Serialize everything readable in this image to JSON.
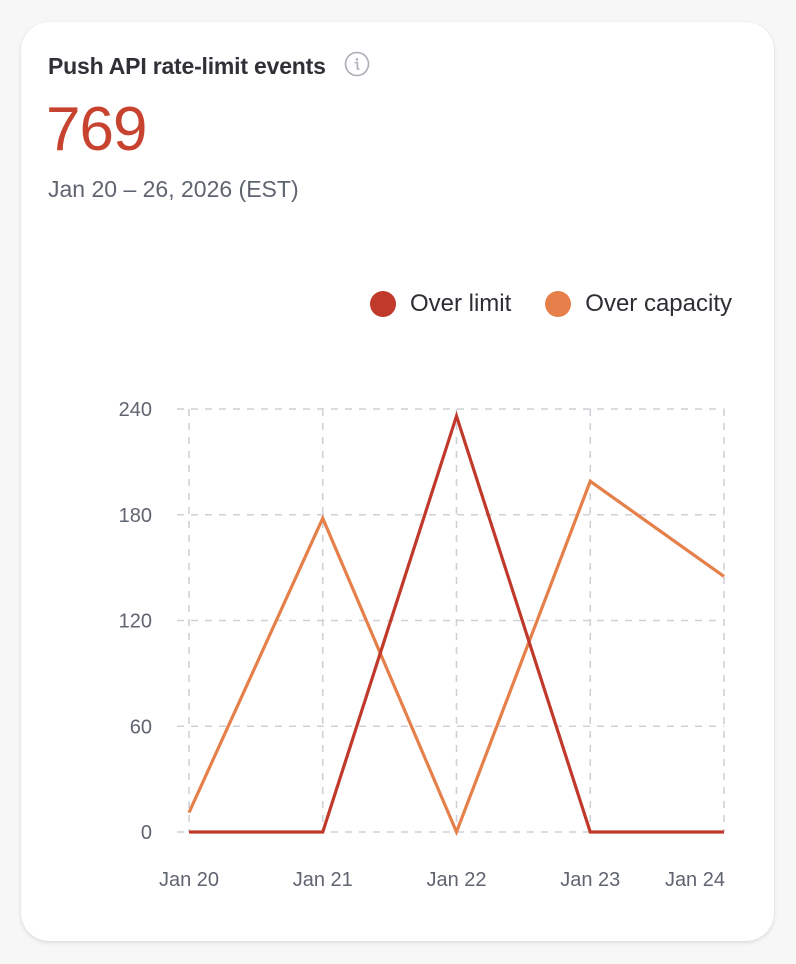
{
  "card": {
    "title": "Push API rate-limit events",
    "info_icon": "info-icon",
    "metric_value": "769",
    "date_range": "Jan 20 – 26, 2026 (EST)"
  },
  "legend": [
    {
      "label": "Over limit",
      "color": "#c0392b"
    },
    {
      "label": "Over capacity",
      "color": "#e5804a"
    }
  ],
  "colors": {
    "metric": "#c8432f",
    "grid": "#cfd1d6",
    "axis_text": "#5f6470",
    "over_limit": "#c0392b",
    "over_capacity": "#e5804a"
  },
  "chart_data": {
    "type": "line",
    "title": "Push API rate-limit events",
    "categories": [
      "Jan 20",
      "Jan 21",
      "Jan 22",
      "Jan 23",
      "Jan 24"
    ],
    "series": [
      {
        "name": "Over limit",
        "color": "#c0392b",
        "values": [
          0,
          0,
          236,
          0,
          0
        ]
      },
      {
        "name": "Over capacity",
        "color": "#e5804a",
        "values": [
          11,
          178,
          0,
          199,
          145
        ]
      }
    ],
    "yticks": [
      0,
      60,
      120,
      180,
      240
    ],
    "ylim": [
      0,
      240
    ],
    "xlabel": "",
    "ylabel": "",
    "grid": true,
    "grid_style": "dashed",
    "legend_position": "top-right"
  }
}
